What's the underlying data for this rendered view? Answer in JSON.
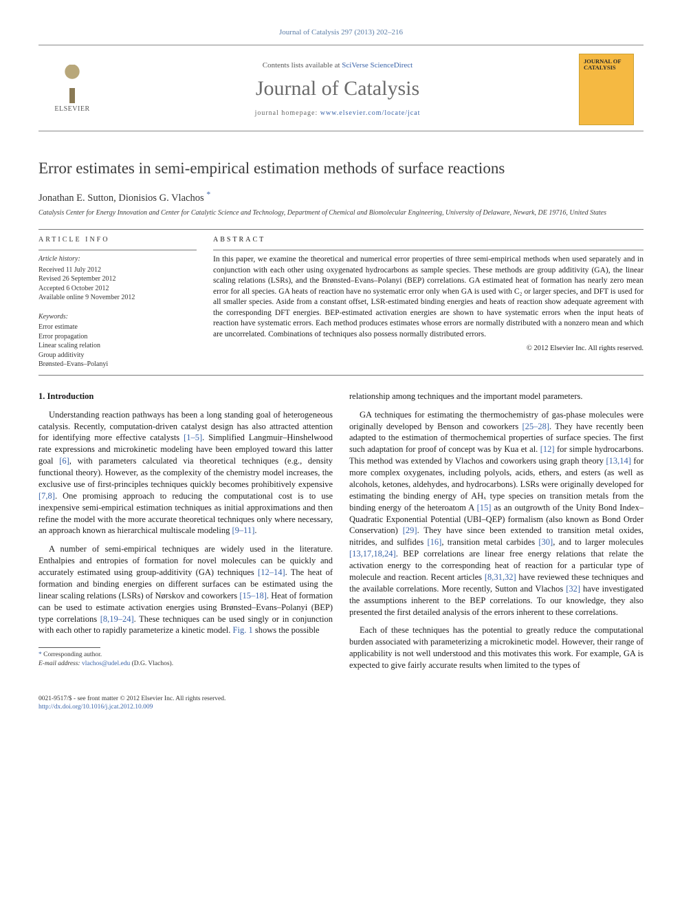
{
  "citation_line": "Journal of Catalysis 297 (2013) 202–216",
  "masthead": {
    "contents_prefix": "Contents lists available at ",
    "contents_link": "SciVerse ScienceDirect",
    "journal_name": "Journal of Catalysis",
    "homepage_prefix": "journal homepage: ",
    "homepage_url": "www.elsevier.com/locate/jcat",
    "elsevier_brand": "ELSEVIER",
    "cover_title": "JOURNAL OF CATALYSIS"
  },
  "article": {
    "title": "Error estimates in semi-empirical estimation methods of surface reactions",
    "authors": "Jonathan E. Sutton, Dionisios G. Vlachos",
    "corr_mark": "*",
    "affiliation": "Catalysis Center for Energy Innovation and Center for Catalytic Science and Technology, Department of Chemical and Biomolecular Engineering, University of Delaware, Newark, DE 19716, United States"
  },
  "article_info": {
    "head": "ARTICLE INFO",
    "history_label": "Article history:",
    "received": "Received 11 July 2012",
    "revised": "Revised 26 September 2012",
    "accepted": "Accepted 6 October 2012",
    "online": "Available online 9 November 2012",
    "keywords_label": "Keywords:",
    "keywords": [
      "Error estimate",
      "Error propagation",
      "Linear scaling relation",
      "Group additivity",
      "Brønsted–Evans–Polanyi"
    ]
  },
  "abstract": {
    "head": "ABSTRACT",
    "text": "In this paper, we examine the theoretical and numerical error properties of three semi-empirical methods when used separately and in conjunction with each other using oxygenated hydrocarbons as sample species. These methods are group additivity (GA), the linear scaling relations (LSRs), and the Brønsted–Evans–Polanyi (BEP) correlations. GA estimated heat of formation has nearly zero mean error for all species. GA heats of reaction have no systematic error only when GA is used with C₂ or larger species, and DFT is used for all smaller species. Aside from a constant offset, LSR-estimated binding energies and heats of reaction show adequate agreement with the corresponding DFT energies. BEP-estimated activation energies are shown to have systematic errors when the input heats of reaction have systematic errors. Each method produces estimates whose errors are normally distributed with a nonzero mean and which are uncorrelated. Combinations of techniques also possess normally distributed errors.",
    "copyright": "© 2012 Elsevier Inc. All rights reserved."
  },
  "body": {
    "section_heading": "1. Introduction",
    "col1_p1": "Understanding reaction pathways has been a long standing goal of heterogeneous catalysis. Recently, computation-driven catalyst design has also attracted attention for identifying more effective catalysts [1–5]. Simplified Langmuir–Hinshelwood rate expressions and microkinetic modeling have been employed toward this latter goal [6], with parameters calculated via theoretical techniques (e.g., density functional theory). However, as the complexity of the chemistry model increases, the exclusive use of first-principles techniques quickly becomes prohibitively expensive [7,8]. One promising approach to reducing the computational cost is to use inexpensive semi-empirical estimation techniques as initial approximations and then refine the model with the more accurate theoretical techniques only where necessary, an approach known as hierarchical multiscale modeling [9–11].",
    "col1_p2": "A number of semi-empirical techniques are widely used in the literature. Enthalpies and entropies of formation for novel molecules can be quickly and accurately estimated using group-additivity (GA) techniques [12–14]. The heat of formation and binding energies on different surfaces can be estimated using the linear scaling relations (LSRs) of Nørskov and coworkers [15–18]. Heat of formation can be used to estimate activation energies using Brønsted–Evans–Polanyi (BEP) type correlations [8,19–24]. These techniques can be used singly or in conjunction with each other to rapidly parameterize a kinetic model. Fig. 1 shows the possible",
    "col2_p1": "relationship among techniques and the important model parameters.",
    "col2_p2": "GA techniques for estimating the thermochemistry of gas-phase molecules were originally developed by Benson and coworkers [25–28]. They have recently been adapted to the estimation of thermochemical properties of surface species. The first such adaptation for proof of concept was by Kua et al. [12] for simple hydrocarbons. This method was extended by Vlachos and coworkers using graph theory [13,14] for more complex oxygenates, including polyols, acids, ethers, and esters (as well as alcohols, ketones, aldehydes, and hydrocarbons). LSRs were originally developed for estimating the binding energy of AHₓ type species on transition metals from the binding energy of the heteroatom A [15] as an outgrowth of the Unity Bond Index–Quadratic Exponential Potential (UBI–QEP) formalism (also known as Bond Order Conservation) [29]. They have since been extended to transition metal oxides, nitrides, and sulfides [16], transition metal carbides [30], and to larger molecules [13,17,18,24]. BEP correlations are linear free energy relations that relate the activation energy to the corresponding heat of reaction for a particular type of molecule and reaction. Recent articles [8,31,32] have reviewed these techniques and the available correlations. More recently, Sutton and Vlachos [32] have investigated the assumptions inherent to the BEP correlations. To our knowledge, they also presented the first detailed analysis of the errors inherent to these correlations.",
    "col2_p3": "Each of these techniques has the potential to greatly reduce the computational burden associated with parameterizing a microkinetic model. However, their range of applicability is not well understood and this motivates this work. For example, GA is expected to give fairly accurate results when limited to the types of"
  },
  "footnotes": {
    "corr_label": "Corresponding author.",
    "email_label": "E-mail address:",
    "email": "vlachos@udel.edu",
    "email_suffix": " (D.G. Vlachos)."
  },
  "footer": {
    "line1": "0021-9517/$ - see front matter © 2012 Elsevier Inc. All rights reserved.",
    "doi": "http://dx.doi.org/10.1016/j.jcat.2012.10.009"
  }
}
